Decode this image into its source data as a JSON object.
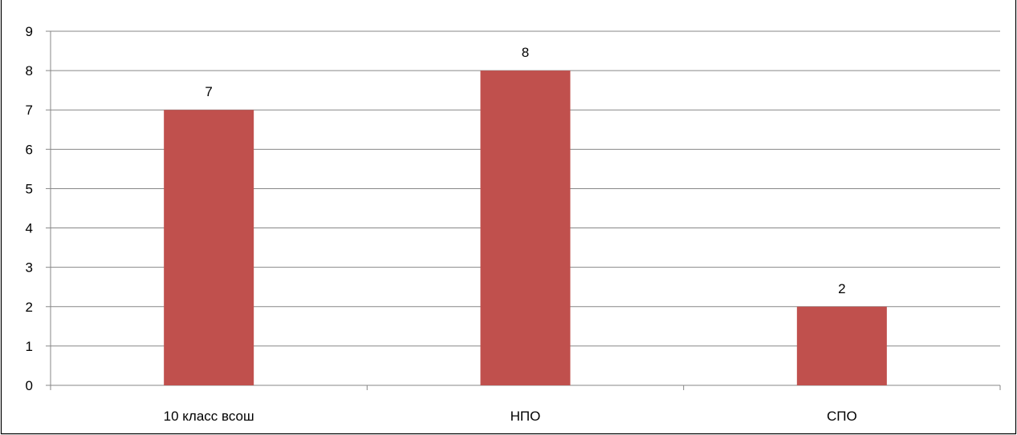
{
  "chart_data": {
    "type": "bar",
    "categories": [
      "10 класс всош",
      "НПО",
      "СПО"
    ],
    "series": [
      {
        "values": [
          7,
          8,
          2
        ]
      }
    ],
    "ylim": [
      0,
      9
    ],
    "yticks": [
      0,
      1,
      2,
      3,
      4,
      5,
      6,
      7,
      8,
      9
    ],
    "grid": true,
    "legend": "none",
    "data_labels": true,
    "title": "",
    "xlabel": "",
    "ylabel": ""
  },
  "colors": {
    "bar": "#c0504d",
    "grid": "#878787",
    "axis": "#878787",
    "border": "#000000"
  }
}
